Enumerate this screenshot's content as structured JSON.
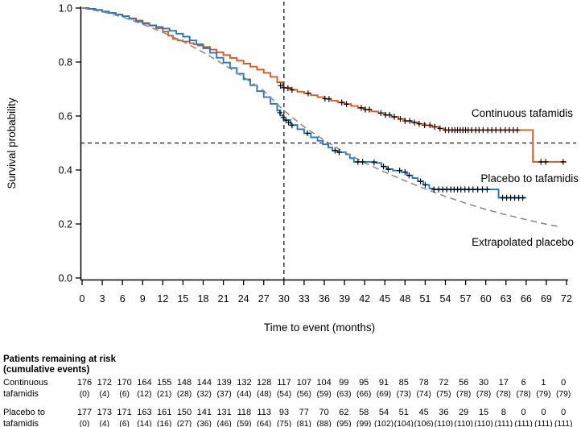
{
  "chart_data": {
    "type": "line",
    "subtype": "kaplan-meier-survival",
    "title": "",
    "xlabel": "Time to event (months)",
    "ylabel": "Survival probability",
    "xlim": [
      0,
      72
    ],
    "ylim": [
      0.0,
      1.0
    ],
    "xticks": [
      0,
      3,
      6,
      9,
      12,
      15,
      18,
      21,
      24,
      27,
      30,
      33,
      36,
      39,
      42,
      45,
      48,
      51,
      54,
      57,
      60,
      63,
      66,
      69,
      72
    ],
    "yticks": [
      0.0,
      0.2,
      0.4,
      0.6,
      0.8,
      1.0
    ],
    "ytick_labels": [
      "0.0",
      "0.2",
      "0.4",
      "0.6",
      "0.8",
      "1.0"
    ],
    "grid": false,
    "legend_position": "labels-on-plot",
    "censor_mark_symbol": "+",
    "reference_lines": {
      "horizontal_y": 0.5,
      "vertical_x_months": 30,
      "style": "dashed",
      "color": "#1a1a1a"
    },
    "series": [
      {
        "name": "Continuous tafamidis",
        "color": "#d85a28",
        "style": "step",
        "points": [
          [
            0,
            1.0
          ],
          [
            1,
            0.997
          ],
          [
            2,
            0.993
          ],
          [
            3,
            0.987
          ],
          [
            4,
            0.982
          ],
          [
            5,
            0.976
          ],
          [
            6,
            0.97
          ],
          [
            7,
            0.962
          ],
          [
            8,
            0.954
          ],
          [
            9,
            0.945
          ],
          [
            10,
            0.935
          ],
          [
            11,
            0.925
          ],
          [
            12,
            0.913
          ],
          [
            12.8,
            0.898
          ],
          [
            13.5,
            0.886
          ],
          [
            14.2,
            0.88
          ],
          [
            15,
            0.876
          ],
          [
            16,
            0.87
          ],
          [
            16.6,
            0.866
          ],
          [
            17.2,
            0.861
          ],
          [
            18,
            0.856
          ],
          [
            19,
            0.846
          ],
          [
            20,
            0.836
          ],
          [
            21,
            0.826
          ],
          [
            22,
            0.815
          ],
          [
            23,
            0.805
          ],
          [
            24,
            0.794
          ],
          [
            25,
            0.783
          ],
          [
            26,
            0.772
          ],
          [
            27,
            0.76
          ],
          [
            28,
            0.745
          ],
          [
            29,
            0.725
          ],
          [
            29.8,
            0.705
          ],
          [
            31,
            0.697
          ],
          [
            32,
            0.69
          ],
          [
            33,
            0.684
          ],
          [
            34,
            0.677
          ],
          [
            35,
            0.67
          ],
          [
            36,
            0.664
          ],
          [
            37,
            0.657
          ],
          [
            38,
            0.65
          ],
          [
            39,
            0.644
          ],
          [
            40,
            0.637
          ],
          [
            41,
            0.63
          ],
          [
            42,
            0.624
          ],
          [
            43,
            0.617
          ],
          [
            44,
            0.611
          ],
          [
            45,
            0.604
          ],
          [
            46,
            0.597
          ],
          [
            47,
            0.589
          ],
          [
            48,
            0.582
          ],
          [
            49,
            0.576
          ],
          [
            50,
            0.571
          ],
          [
            51,
            0.566
          ],
          [
            52,
            0.56
          ],
          [
            53,
            0.554
          ],
          [
            53.8,
            0.548
          ],
          [
            67,
            0.43
          ],
          [
            72,
            0.43
          ]
        ],
        "censor_marks": [
          [
            29.5,
            0.712
          ],
          [
            30.0,
            0.705
          ],
          [
            30.6,
            0.703
          ],
          [
            31.2,
            0.697
          ],
          [
            33.6,
            0.684
          ],
          [
            36.1,
            0.664
          ],
          [
            36.7,
            0.663
          ],
          [
            38.6,
            0.65
          ],
          [
            39.3,
            0.644
          ],
          [
            41.5,
            0.63
          ],
          [
            42.1,
            0.624
          ],
          [
            42.7,
            0.624
          ],
          [
            44.4,
            0.611
          ],
          [
            45.1,
            0.604
          ],
          [
            45.7,
            0.604
          ],
          [
            46.4,
            0.597
          ],
          [
            47.3,
            0.589
          ],
          [
            48.0,
            0.582
          ],
          [
            48.7,
            0.582
          ],
          [
            49.4,
            0.576
          ],
          [
            50.1,
            0.571
          ],
          [
            50.9,
            0.566
          ],
          [
            51.7,
            0.566
          ],
          [
            52.4,
            0.56
          ],
          [
            53.2,
            0.554
          ],
          [
            54.0,
            0.548
          ],
          [
            54.5,
            0.548
          ],
          [
            55.0,
            0.548
          ],
          [
            55.4,
            0.548
          ],
          [
            55.8,
            0.548
          ],
          [
            56.2,
            0.548
          ],
          [
            56.6,
            0.548
          ],
          [
            57.0,
            0.548
          ],
          [
            57.4,
            0.548
          ],
          [
            57.9,
            0.548
          ],
          [
            58.5,
            0.548
          ],
          [
            59.0,
            0.548
          ],
          [
            59.6,
            0.548
          ],
          [
            60.3,
            0.548
          ],
          [
            60.9,
            0.548
          ],
          [
            61.5,
            0.548
          ],
          [
            62.2,
            0.548
          ],
          [
            62.9,
            0.548
          ],
          [
            63.5,
            0.548
          ],
          [
            64.1,
            0.548
          ],
          [
            64.7,
            0.548
          ],
          [
            68.2,
            0.43
          ],
          [
            68.9,
            0.43
          ],
          [
            71.5,
            0.43
          ]
        ]
      },
      {
        "name": "Placebo to tafamidis",
        "color": "#2878b8",
        "style": "step",
        "points": [
          [
            0,
            1.0
          ],
          [
            1,
            0.997
          ],
          [
            2,
            0.993
          ],
          [
            3,
            0.987
          ],
          [
            4,
            0.982
          ],
          [
            5,
            0.976
          ],
          [
            6,
            0.97
          ],
          [
            7,
            0.96
          ],
          [
            8,
            0.95
          ],
          [
            9,
            0.942
          ],
          [
            10,
            0.936
          ],
          [
            11,
            0.93
          ],
          [
            12,
            0.924
          ],
          [
            13,
            0.916
          ],
          [
            14,
            0.905
          ],
          [
            15,
            0.894
          ],
          [
            16,
            0.88
          ],
          [
            17,
            0.866
          ],
          [
            18,
            0.851
          ],
          [
            19,
            0.834
          ],
          [
            20,
            0.816
          ],
          [
            21,
            0.798
          ],
          [
            22,
            0.778
          ],
          [
            23,
            0.757
          ],
          [
            24,
            0.736
          ],
          [
            25,
            0.714
          ],
          [
            26,
            0.692
          ],
          [
            27,
            0.67
          ],
          [
            28,
            0.645
          ],
          [
            29,
            0.62
          ],
          [
            29.5,
            0.602
          ],
          [
            30,
            0.585
          ],
          [
            31,
            0.567
          ],
          [
            32,
            0.551
          ],
          [
            33,
            0.536
          ],
          [
            34,
            0.521
          ],
          [
            35,
            0.508
          ],
          [
            35.8,
            0.495
          ],
          [
            36.6,
            0.483
          ],
          [
            37.2,
            0.472
          ],
          [
            38,
            0.466
          ],
          [
            39.2,
            0.458
          ],
          [
            39.8,
            0.444
          ],
          [
            40.4,
            0.43
          ],
          [
            43.8,
            0.426
          ],
          [
            44.5,
            0.413
          ],
          [
            45.3,
            0.403
          ],
          [
            46.2,
            0.398
          ],
          [
            47.5,
            0.392
          ],
          [
            48.3,
            0.38
          ],
          [
            49.1,
            0.37
          ],
          [
            49.9,
            0.358
          ],
          [
            50.7,
            0.345
          ],
          [
            51.6,
            0.332
          ],
          [
            52.2,
            0.328
          ],
          [
            61.9,
            0.297
          ],
          [
            66,
            0.297
          ]
        ],
        "censor_marks": [
          [
            29.4,
            0.612
          ],
          [
            29.9,
            0.595
          ],
          [
            30.3,
            0.585
          ],
          [
            30.7,
            0.576
          ],
          [
            31.2,
            0.565
          ],
          [
            33.5,
            0.536
          ],
          [
            37.6,
            0.472
          ],
          [
            38.2,
            0.466
          ],
          [
            41.0,
            0.43
          ],
          [
            41.7,
            0.43
          ],
          [
            43.4,
            0.428
          ],
          [
            44.8,
            0.413
          ],
          [
            45.5,
            0.403
          ],
          [
            47.2,
            0.398
          ],
          [
            48.0,
            0.392
          ],
          [
            48.6,
            0.38
          ],
          [
            50.3,
            0.358
          ],
          [
            51.0,
            0.345
          ],
          [
            52.3,
            0.328
          ],
          [
            53.0,
            0.328
          ],
          [
            53.6,
            0.328
          ],
          [
            54.2,
            0.328
          ],
          [
            54.8,
            0.328
          ],
          [
            55.3,
            0.328
          ],
          [
            55.8,
            0.328
          ],
          [
            56.3,
            0.328
          ],
          [
            56.9,
            0.328
          ],
          [
            57.5,
            0.328
          ],
          [
            58.1,
            0.328
          ],
          [
            58.8,
            0.328
          ],
          [
            59.5,
            0.328
          ],
          [
            60.2,
            0.328
          ],
          [
            62.5,
            0.297
          ],
          [
            63.1,
            0.297
          ],
          [
            63.7,
            0.297
          ],
          [
            64.3,
            0.297
          ],
          [
            64.9,
            0.297
          ],
          [
            65.5,
            0.297
          ]
        ]
      },
      {
        "name": "Extrapolated placebo",
        "color": "#8c8c8c",
        "style": "dashed-smooth",
        "points": [
          [
            0,
            1.0
          ],
          [
            3,
            0.986
          ],
          [
            6,
            0.967
          ],
          [
            9,
            0.94
          ],
          [
            12,
            0.91
          ],
          [
            15,
            0.876
          ],
          [
            18,
            0.836
          ],
          [
            21,
            0.792
          ],
          [
            24,
            0.744
          ],
          [
            27,
            0.694
          ],
          [
            30,
            0.62
          ],
          [
            33,
            0.56
          ],
          [
            36,
            0.51
          ],
          [
            39,
            0.466
          ],
          [
            42,
            0.427
          ],
          [
            45,
            0.392
          ],
          [
            48,
            0.36
          ],
          [
            51,
            0.33
          ],
          [
            54,
            0.302
          ],
          [
            57,
            0.277
          ],
          [
            60,
            0.254
          ],
          [
            63,
            0.234
          ],
          [
            66,
            0.216
          ],
          [
            69,
            0.199
          ],
          [
            71,
            0.19
          ]
        ],
        "censor_marks": []
      }
    ]
  },
  "risk_table": {
    "header_line1": "Patients remaining at risk",
    "header_line2": "(cumulative events)",
    "timepoints": [
      0,
      3,
      6,
      9,
      12,
      15,
      18,
      21,
      24,
      27,
      30,
      33,
      36,
      39,
      42,
      45,
      48,
      51,
      54,
      57,
      60,
      63,
      66,
      69,
      72
    ],
    "rows": [
      {
        "label_line1": "Continuous",
        "label_line2": "tafamidis",
        "at_risk": [
          176,
          172,
          170,
          164,
          155,
          148,
          144,
          139,
          132,
          128,
          117,
          107,
          104,
          99,
          95,
          91,
          85,
          78,
          72,
          56,
          30,
          17,
          6,
          1,
          0
        ],
        "cumulative_events": [
          0,
          4,
          6,
          12,
          21,
          28,
          32,
          37,
          44,
          48,
          54,
          56,
          59,
          63,
          66,
          69,
          73,
          74,
          75,
          78,
          78,
          78,
          78,
          79,
          79
        ]
      },
      {
        "label_line1": "Placebo to",
        "label_line2": "tafamidis",
        "at_risk": [
          177,
          173,
          171,
          163,
          161,
          150,
          141,
          131,
          118,
          113,
          93,
          77,
          70,
          62,
          58,
          54,
          51,
          45,
          36,
          29,
          15,
          8,
          0,
          0,
          0
        ],
        "cumulative_events": [
          0,
          4,
          6,
          14,
          16,
          27,
          36,
          46,
          59,
          64,
          75,
          81,
          88,
          95,
          99,
          102,
          104,
          106,
          110,
          110,
          110,
          111,
          111,
          111,
          111
        ]
      }
    ]
  }
}
